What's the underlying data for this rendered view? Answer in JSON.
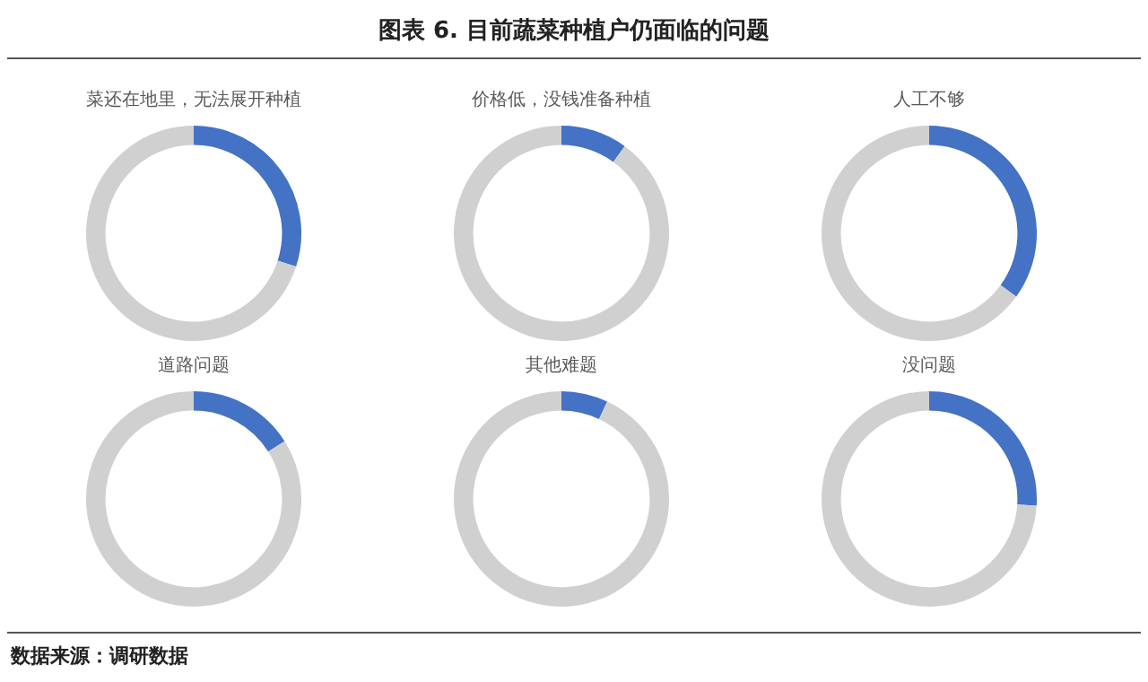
{
  "chart_data": [
    {
      "type": "other",
      "title": "图表 6.   目前蔬菜种植户仍面临的问题",
      "annotations": [
        "数据来源：调研数据"
      ]
    },
    {
      "type": "donut",
      "title": "菜还在地里，无法展开种植",
      "categories": [
        null,
        null
      ],
      "values": [
        30,
        70
      ],
      "colors": [
        "#4472c4",
        "#d0d0d0"
      ]
    },
    {
      "type": "donut",
      "title": "价格低，没钱准备种植",
      "categories": [
        null,
        null
      ],
      "values": [
        10,
        90
      ],
      "colors": [
        "#4472c4",
        "#d0d0d0"
      ]
    },
    {
      "type": "donut",
      "title": "人工不够",
      "categories": [
        null,
        null
      ],
      "values": [
        35,
        65
      ],
      "colors": [
        "#4472c4",
        "#d0d0d0"
      ]
    },
    {
      "type": "donut",
      "title": "道路问题",
      "categories": [
        null,
        null
      ],
      "values": [
        16,
        84
      ],
      "colors": [
        "#4472c4",
        "#d0d0d0"
      ]
    },
    {
      "type": "donut",
      "title": "其他难题",
      "categories": [
        null,
        null
      ],
      "values": [
        7,
        93
      ],
      "colors": [
        "#4472c4",
        "#d0d0d0"
      ]
    },
    {
      "type": "donut",
      "title": "没问题",
      "categories": [
        null,
        null
      ],
      "values": [
        26,
        74
      ],
      "colors": [
        "#4472c4",
        "#d0d0d0"
      ]
    }
  ]
}
